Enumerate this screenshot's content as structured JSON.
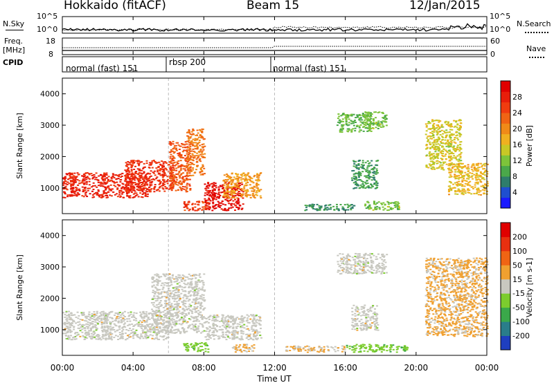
{
  "header": {
    "station": "Hokkaido (fitACF)",
    "beam": "Beam 15",
    "date": "12/Jan/2015"
  },
  "top_panels": {
    "nsky_label": "N.Sky",
    "nsearch_label": "N.Search",
    "nsky_ticks": [
      "10^5",
      "10^0"
    ],
    "nsearch_ticks": [
      "10^5",
      "10^0"
    ],
    "freq_label": "Freq.",
    "freq_unit": "[MHz]",
    "freq_ticks": [
      "18",
      "8"
    ],
    "nave_label": "Nave",
    "nave_ticks": [
      "60",
      "0"
    ],
    "cpid_label": "CPID",
    "cpid_segments": [
      {
        "label": "normal (fast) 151",
        "start_h": 0,
        "end_h": 6
      },
      {
        "label": "rbsp 200",
        "start_h": 6,
        "end_h": 12
      },
      {
        "label": "normal (fast) 151",
        "start_h": 12,
        "end_h": 24
      }
    ]
  },
  "x_axis": {
    "title": "Time UT",
    "ticks": [
      "00:00",
      "04:00",
      "08:00",
      "12:00",
      "16:00",
      "20:00",
      "00:00"
    ],
    "range_h": [
      0,
      24
    ]
  },
  "colors": {
    "power": [
      "#1a1aff",
      "#1f4fcf",
      "#2e7d6b",
      "#4aa84a",
      "#7dc43a",
      "#c8c826",
      "#f0b020",
      "#f08a18",
      "#f06414",
      "#f03c0f",
      "#e81e0a",
      "#e00000"
    ],
    "velocity": [
      "#1f3fbf",
      "#2a7d8a",
      "#3aa84a",
      "#7ccc2e",
      "#c8c8c0",
      "#f0a030",
      "#f06414",
      "#e83010",
      "#e00000"
    ]
  },
  "chart_data": [
    {
      "type": "heatmap",
      "title": "Power",
      "ylabel": "Slant Range [km]",
      "xlabel": "",
      "ylim": [
        180,
        4500
      ],
      "xlim": [
        0,
        24
      ],
      "y_ticks": [
        "4000",
        "3000",
        "2000",
        "1000"
      ],
      "colorbar": {
        "label": "Power [dB]",
        "ticks": [
          "28",
          "24",
          "20",
          "16",
          "12",
          "8",
          "4"
        ],
        "range": [
          0,
          30
        ]
      },
      "regions": [
        {
          "t0": 0,
          "t1": 4.8,
          "r0": 700,
          "r1": 1500,
          "value": 26
        },
        {
          "t0": 3.5,
          "t1": 6.2,
          "r0": 900,
          "r1": 1900,
          "value": 25
        },
        {
          "t0": 6.0,
          "t1": 7.2,
          "r0": 900,
          "r1": 2500,
          "value": 22
        },
        {
          "t0": 7.0,
          "t1": 8.0,
          "r0": 1400,
          "r1": 2900,
          "value": 20
        },
        {
          "t0": 8.0,
          "t1": 10.2,
          "r0": 300,
          "r1": 1200,
          "value": 28
        },
        {
          "t0": 6.8,
          "t1": 8.2,
          "r0": 300,
          "r1": 600,
          "value": 24
        },
        {
          "t0": 9.0,
          "t1": 11.2,
          "r0": 700,
          "r1": 1500,
          "value": 18
        },
        {
          "t0": 15.5,
          "t1": 17.5,
          "r0": 2800,
          "r1": 3400,
          "value": 10
        },
        {
          "t0": 17.0,
          "t1": 18.3,
          "r0": 2900,
          "r1": 3450,
          "value": 11
        },
        {
          "t0": 16.3,
          "t1": 17.8,
          "r0": 1000,
          "r1": 1900,
          "value": 8
        },
        {
          "t0": 13.5,
          "t1": 16.5,
          "r0": 300,
          "r1": 500,
          "value": 7
        },
        {
          "t0": 17.0,
          "t1": 19.0,
          "r0": 300,
          "r1": 600,
          "value": 11
        },
        {
          "t0": 20.5,
          "t1": 22.5,
          "r0": 1600,
          "r1": 3200,
          "value": 14
        },
        {
          "t0": 21.8,
          "t1": 24.0,
          "r0": 800,
          "r1": 1800,
          "value": 16
        }
      ]
    },
    {
      "type": "heatmap",
      "title": "Velocity",
      "ylabel": "Slant Range [km]",
      "xlabel": "Time UT",
      "ylim": [
        180,
        4500
      ],
      "xlim": [
        0,
        24
      ],
      "y_ticks": [
        "4000",
        "3000",
        "2000",
        "1000"
      ],
      "colorbar": {
        "label": "Velocity [m s-1]",
        "ticks": [
          "200",
          "100",
          "50",
          "15",
          "-15",
          "-50",
          "-100",
          "-200"
        ],
        "range": [
          -250,
          250
        ]
      },
      "regions": [
        {
          "t0": 0,
          "t1": 6.0,
          "r0": 700,
          "r1": 1600,
          "value": 0
        },
        {
          "t0": 5.0,
          "t1": 8.0,
          "r0": 900,
          "r1": 2800,
          "value": 0
        },
        {
          "t0": 8.0,
          "t1": 11.2,
          "r0": 700,
          "r1": 1500,
          "value": 0
        },
        {
          "t0": 6.8,
          "t1": 8.2,
          "r0": 300,
          "r1": 600,
          "value": -60
        },
        {
          "t0": 9.5,
          "t1": 10.8,
          "r0": 300,
          "r1": 550,
          "value": 40
        },
        {
          "t0": 15.5,
          "t1": 18.3,
          "r0": 2800,
          "r1": 3450,
          "value": 0
        },
        {
          "t0": 16.3,
          "t1": 17.8,
          "r0": 1000,
          "r1": 1800,
          "value": 0
        },
        {
          "t0": 12.5,
          "t1": 16.0,
          "r0": 300,
          "r1": 500,
          "value": 30
        },
        {
          "t0": 16.0,
          "t1": 19.5,
          "r0": 300,
          "r1": 550,
          "value": -60
        },
        {
          "t0": 20.5,
          "t1": 24.0,
          "r0": 800,
          "r1": 3300,
          "value": 40
        }
      ]
    }
  ]
}
